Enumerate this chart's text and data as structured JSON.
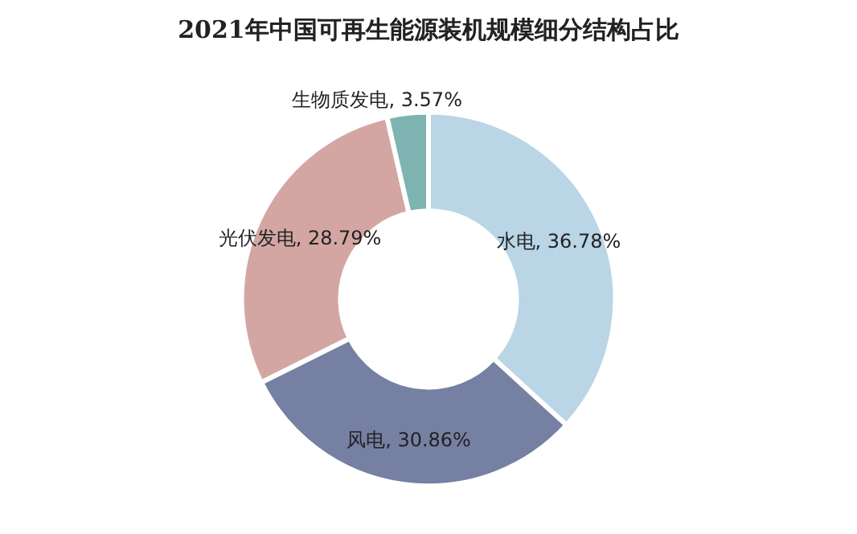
{
  "chart_data": {
    "type": "donut",
    "title": "2021年中国可再生能源装机规模细分结构占比",
    "categories": [
      "水电",
      "风电",
      "光伏发电",
      "生物质发电"
    ],
    "values": [
      36.78,
      30.86,
      28.79,
      3.57
    ],
    "colors": [
      "#b9d5e6",
      "#7680a2",
      "#d3a6a4",
      "#7db4b1"
    ],
    "value_labels": [
      "36.78%",
      "30.86%",
      "28.79%",
      "3.57%"
    ],
    "legend": false
  }
}
